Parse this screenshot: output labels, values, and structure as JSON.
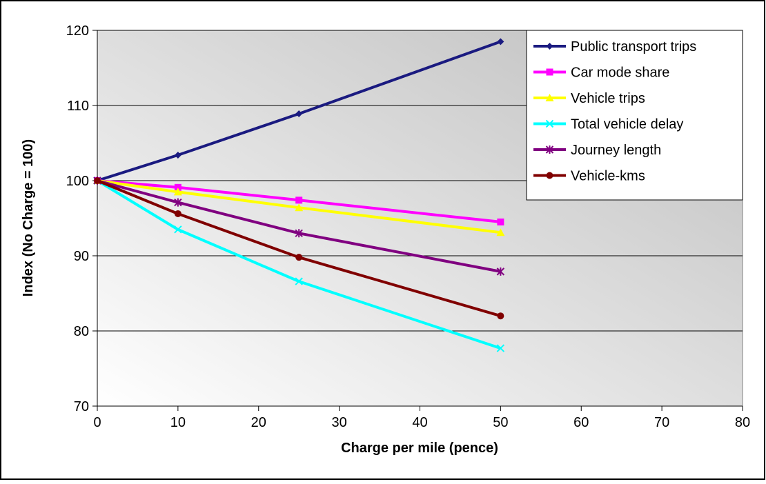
{
  "chart_data": {
    "type": "line",
    "title": "",
    "xlabel": "Charge per mile (pence)",
    "ylabel": "Index (No Charge = 100)",
    "xlim": [
      0,
      80
    ],
    "ylim": [
      70,
      120
    ],
    "xticks": [
      0,
      10,
      20,
      30,
      40,
      50,
      60,
      70,
      80
    ],
    "yticks": [
      70,
      80,
      90,
      100,
      110,
      120
    ],
    "grid": "horizontal",
    "legend_position": "top-right",
    "background": "gradient grey",
    "x": [
      0,
      10,
      25,
      50
    ],
    "series": [
      {
        "name": "Public transport trips",
        "color": "#1a1a80",
        "marker": "diamond",
        "values": [
          100,
          103.4,
          108.9,
          118.5
        ]
      },
      {
        "name": "Car mode share",
        "color": "#ff00ff",
        "marker": "square",
        "values": [
          100,
          99.1,
          97.4,
          94.5
        ]
      },
      {
        "name": "Vehicle trips",
        "color": "#ffff00",
        "marker": "triangle",
        "values": [
          100,
          98.5,
          96.4,
          93.1
        ]
      },
      {
        "name": "Total vehicle delay",
        "color": "#00ffff",
        "marker": "x",
        "values": [
          100,
          93.5,
          86.6,
          77.7
        ]
      },
      {
        "name": "Journey length",
        "color": "#800080",
        "marker": "star",
        "values": [
          100,
          97.1,
          93.0,
          87.9
        ]
      },
      {
        "name": "Vehicle-kms",
        "color": "#800000",
        "marker": "circle",
        "values": [
          100,
          95.6,
          89.8,
          82.0
        ]
      }
    ]
  }
}
